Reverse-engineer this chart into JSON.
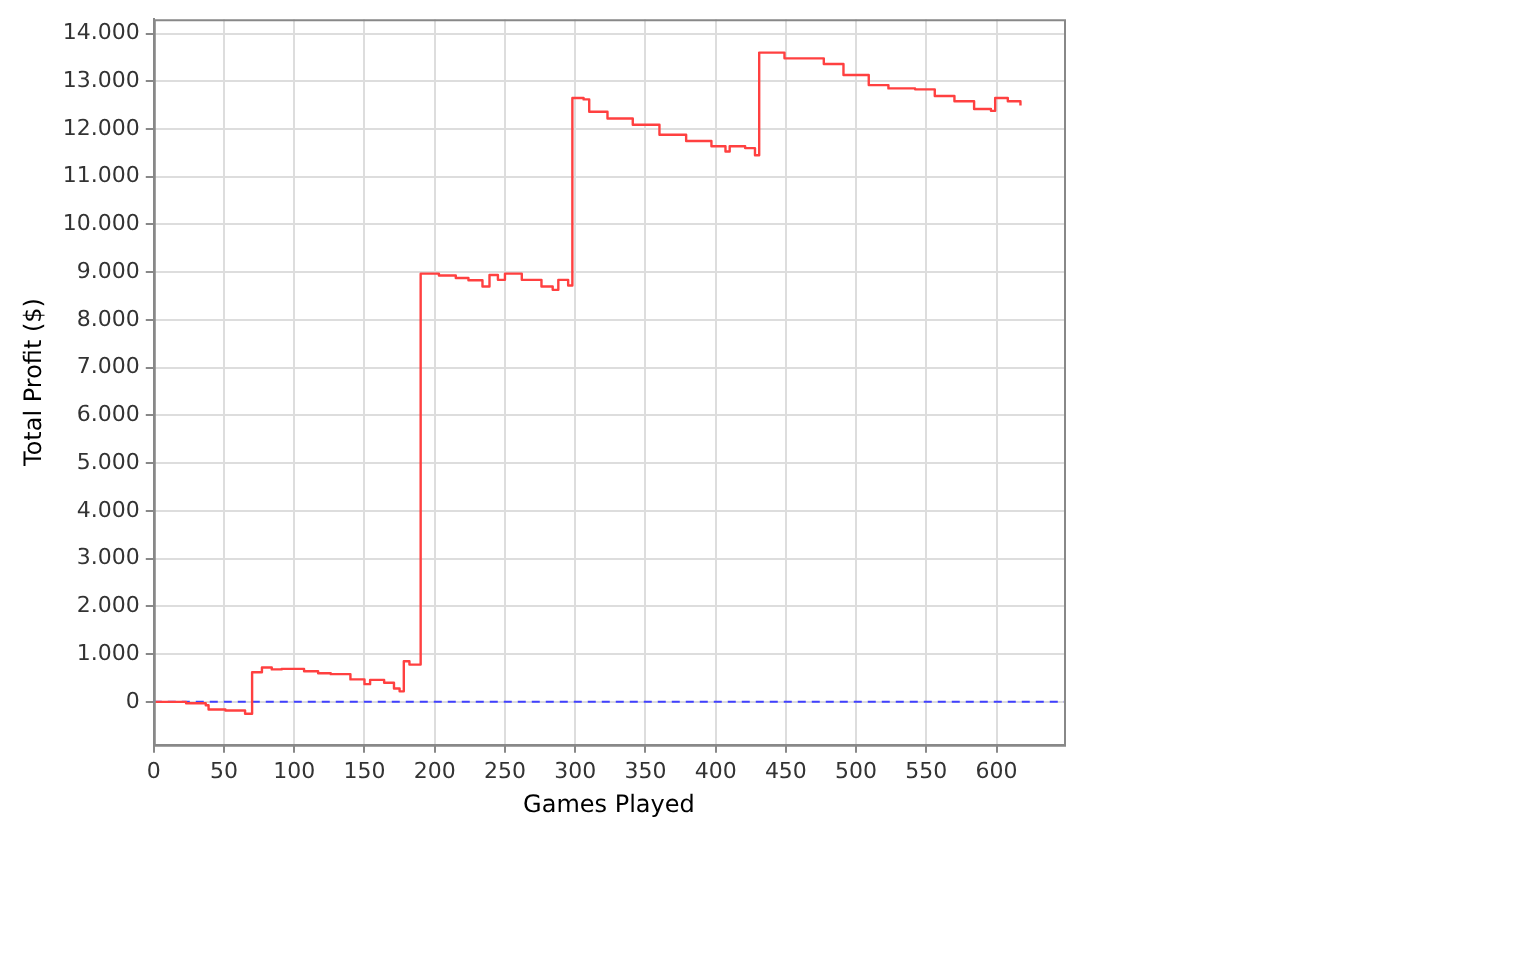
{
  "chart_data": {
    "type": "step",
    "xlabel": "Games Played",
    "ylabel": "Total Profit ($)",
    "xlim": [
      0,
      648
    ],
    "xticks": [
      0,
      50,
      100,
      150,
      200,
      250,
      300,
      350,
      400,
      450,
      500,
      550,
      600
    ],
    "ylim": [
      -900,
      14300
    ],
    "yticks": [
      0,
      {
        "value": 1000,
        "label": "1.000"
      },
      {
        "value": 2000,
        "label": "2.000"
      },
      {
        "value": 3000,
        "label": "3.000"
      },
      {
        "value": 4000,
        "label": "4.000"
      },
      {
        "value": 5000,
        "label": "5.000"
      },
      {
        "value": 6000,
        "label": "6.000"
      },
      {
        "value": 7000,
        "label": "7.000"
      },
      {
        "value": 8000,
        "label": "8.000"
      },
      {
        "value": 9000,
        "label": "9.000"
      },
      {
        "value": 10000,
        "label": "10.000"
      },
      {
        "value": 11000,
        "label": "11.000"
      },
      {
        "value": 12000,
        "label": "12.000"
      },
      {
        "value": 13000,
        "label": "13.000"
      },
      {
        "value": 14000,
        "label": "14.000"
      }
    ],
    "grid": true,
    "legend": false,
    "marker": "none",
    "line_style": "solid",
    "ref_lines": [
      {
        "axis": "y",
        "value": 0,
        "label": null,
        "color": "#4040ff",
        "line_style": "dashed"
      }
    ],
    "series": [
      {
        "color": "#ff4040",
        "x": [
          0,
          23,
          37,
          39,
          51,
          65,
          70,
          77,
          84,
          91,
          107,
          117,
          126,
          140,
          150,
          154,
          164,
          171,
          175,
          178,
          182,
          190,
          203,
          215,
          224,
          234,
          239,
          245,
          250,
          262,
          276,
          284,
          288,
          295,
          298,
          306,
          310,
          323,
          341,
          360,
          379,
          397,
          407,
          410,
          421,
          428,
          431,
          449,
          477,
          491,
          509,
          523,
          542,
          556,
          570,
          584,
          596,
          599,
          608,
          617
        ],
        "values": [
          0,
          -30,
          -70,
          -160,
          -180,
          -250,
          620,
          720,
          680,
          690,
          640,
          600,
          580,
          470,
          370,
          460,
          400,
          280,
          220,
          850,
          780,
          8970,
          8930,
          8880,
          8830,
          8700,
          8940,
          8840,
          8970,
          8840,
          8700,
          8630,
          8840,
          8720,
          12650,
          12620,
          12360,
          12220,
          12090,
          11880,
          11750,
          11640,
          11530,
          11640,
          11600,
          11450,
          13600,
          13480,
          13360,
          13130,
          12920,
          12850,
          12830,
          12690,
          12580,
          12420,
          12380,
          12650,
          12580,
          12490
        ]
      }
    ]
  }
}
